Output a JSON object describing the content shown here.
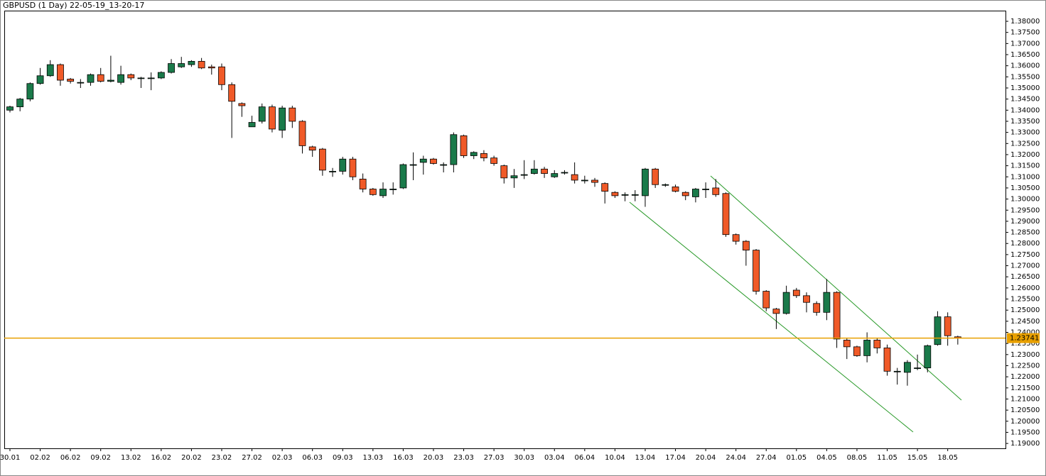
{
  "chart_data": {
    "type": "candlestick",
    "title": "GBPUSD (1 Day) 22-05-19_13-20-17",
    "categories": [
      "30.01",
      null,
      null,
      "02.02",
      null,
      null,
      "06.02",
      null,
      null,
      "09.02",
      null,
      null,
      "13.02",
      null,
      null,
      "16.02",
      null,
      null,
      "20.02",
      null,
      null,
      "23.02",
      null,
      null,
      "27.02",
      null,
      null,
      "02.03",
      null,
      null,
      "06.03",
      null,
      null,
      "09.03",
      null,
      null,
      "13.03",
      null,
      null,
      "16.03",
      null,
      null,
      "20.03",
      null,
      null,
      "23.03",
      null,
      null,
      "27.03",
      null,
      null,
      "30.03",
      null,
      null,
      "03.04",
      null,
      null,
      "06.04",
      null,
      null,
      "10.04",
      null,
      null,
      "13.04",
      null,
      null,
      "17.04",
      null,
      null,
      "20.04",
      null,
      null,
      "24.04",
      null,
      null,
      "27.04",
      null,
      null,
      "01.05",
      null,
      null,
      "04.05",
      null,
      null,
      "08.05",
      null,
      null,
      "11.05",
      null,
      null,
      "15.05",
      null,
      null,
      "18.05",
      null
    ],
    "open": [
      1.34,
      1.3415,
      1.345,
      1.352,
      1.3555,
      1.3605,
      1.354,
      1.3525,
      1.3525,
      1.356,
      1.353,
      1.3525,
      1.356,
      1.3545,
      1.3545,
      1.3545,
      1.357,
      1.3595,
      1.3605,
      1.362,
      1.3595,
      1.3595,
      1.3515,
      1.343,
      1.3325,
      1.335,
      1.3415,
      1.331,
      1.341,
      1.335,
      1.3235,
      1.3225,
      1.3125,
      1.3125,
      1.318,
      1.309,
      1.3045,
      1.3015,
      1.3045,
      1.305,
      1.3155,
      1.3165,
      1.318,
      1.3155,
      1.3155,
      1.3285,
      1.3195,
      1.3205,
      1.3185,
      1.315,
      1.3095,
      1.311,
      1.3115,
      1.3135,
      1.31,
      1.312,
      1.311,
      1.3085,
      1.3085,
      1.307,
      1.303,
      1.302,
      1.302,
      1.3015,
      1.3135,
      1.3065,
      1.3055,
      1.303,
      1.301,
      1.3045,
      1.305,
      1.3025,
      1.284,
      1.281,
      1.277,
      1.2585,
      1.2505,
      1.2485,
      1.259,
      1.2565,
      1.253,
      1.249,
      1.258,
      1.2365,
      1.2335,
      1.2295,
      1.2365,
      1.233,
      1.2225,
      1.222,
      1.224,
      1.224,
      1.2345,
      1.247,
      1.238
    ],
    "high": [
      1.342,
      1.3455,
      1.3525,
      1.359,
      1.3625,
      1.361,
      1.3545,
      1.354,
      1.3565,
      1.359,
      1.3645,
      1.36,
      1.3565,
      1.355,
      1.357,
      1.3575,
      1.363,
      1.364,
      1.3625,
      1.3635,
      1.3605,
      1.361,
      1.3525,
      1.3435,
      1.3375,
      1.343,
      1.3425,
      1.342,
      1.342,
      1.3355,
      1.324,
      1.323,
      1.314,
      1.319,
      1.319,
      1.3115,
      1.305,
      1.3075,
      1.3075,
      1.316,
      1.321,
      1.3195,
      1.3185,
      1.3165,
      1.33,
      1.329,
      1.3215,
      1.322,
      1.3195,
      1.3155,
      1.3135,
      1.3175,
      1.3175,
      1.3145,
      1.313,
      1.313,
      1.3165,
      1.3105,
      1.3095,
      1.3075,
      1.3035,
      1.303,
      1.304,
      1.314,
      1.314,
      1.307,
      1.3065,
      1.3035,
      1.305,
      1.3075,
      1.309,
      1.303,
      1.2845,
      1.2815,
      1.2775,
      1.259,
      1.251,
      1.261,
      1.26,
      1.258,
      1.254,
      1.264,
      1.2585,
      1.2375,
      1.234,
      1.24,
      1.2375,
      1.2345,
      1.224,
      1.2275,
      1.23,
      1.2345,
      1.2495,
      1.249,
      1.2385
    ],
    "low": [
      1.339,
      1.3395,
      1.344,
      1.3515,
      1.355,
      1.351,
      1.352,
      1.35,
      1.351,
      1.3525,
      1.3525,
      1.3515,
      1.3535,
      1.35,
      1.349,
      1.354,
      1.3565,
      1.359,
      1.3595,
      1.3585,
      1.356,
      1.349,
      1.3275,
      1.337,
      1.3325,
      1.334,
      1.33,
      1.3275,
      1.332,
      1.3205,
      1.319,
      1.3105,
      1.31,
      1.311,
      1.3085,
      1.303,
      1.3015,
      1.3005,
      1.302,
      1.3045,
      1.3085,
      1.311,
      1.3155,
      1.312,
      1.312,
      1.3185,
      1.318,
      1.317,
      1.315,
      1.307,
      1.305,
      1.309,
      1.311,
      1.3095,
      1.3095,
      1.311,
      1.307,
      1.307,
      1.3055,
      1.298,
      1.3005,
      1.299,
      1.299,
      1.2965,
      1.305,
      1.3055,
      1.303,
      1.2995,
      1.2985,
      1.3005,
      1.301,
      1.283,
      1.2795,
      1.27,
      1.257,
      1.2495,
      1.2415,
      1.248,
      1.2555,
      1.249,
      1.2475,
      1.2455,
      1.233,
      1.228,
      1.229,
      1.2265,
      1.2305,
      1.2205,
      1.2165,
      1.216,
      1.223,
      1.222,
      1.234,
      1.234,
      1.2345
    ],
    "close": [
      1.3415,
      1.345,
      1.352,
      1.3555,
      1.3605,
      1.3535,
      1.353,
      1.3525,
      1.356,
      1.353,
      1.3535,
      1.356,
      1.3545,
      1.3545,
      1.3545,
      1.357,
      1.361,
      1.361,
      1.362,
      1.359,
      1.359,
      1.3515,
      1.344,
      1.342,
      1.3345,
      1.3415,
      1.3315,
      1.341,
      1.335,
      1.324,
      1.322,
      1.313,
      1.3125,
      1.318,
      1.31,
      1.3045,
      1.302,
      1.3045,
      1.3045,
      1.3155,
      1.3155,
      1.318,
      1.316,
      1.3155,
      1.329,
      1.3195,
      1.321,
      1.3185,
      1.316,
      1.3095,
      1.3105,
      1.311,
      1.3135,
      1.3115,
      1.3115,
      1.312,
      1.3085,
      1.3085,
      1.3075,
      1.3035,
      1.3015,
      1.302,
      1.302,
      1.3135,
      1.3065,
      1.3065,
      1.3035,
      1.3015,
      1.3045,
      1.3045,
      1.302,
      1.284,
      1.281,
      1.277,
      1.2585,
      1.251,
      1.2485,
      1.258,
      1.2565,
      1.2535,
      1.249,
      1.258,
      1.237,
      1.2335,
      1.2295,
      1.2365,
      1.233,
      1.2225,
      1.2225,
      1.2265,
      1.224,
      1.234,
      1.247,
      1.2385,
      1.2375
    ],
    "up_color": "#1a7a4a",
    "down_color": "#f05a28",
    "current_price": 1.23741,
    "current_price_color": "#e8a000",
    "ylim": [
      1.1878,
      1.3848
    ],
    "yticks": [
      {
        "value": 1.19,
        "label": "1.19000"
      },
      {
        "value": 1.195,
        "label": "1.19500"
      },
      {
        "value": 1.2,
        "label": "1.20000"
      },
      {
        "value": 1.205,
        "label": "1.20500"
      },
      {
        "value": 1.21,
        "label": "1.21000"
      },
      {
        "value": 1.215,
        "label": "1.21500"
      },
      {
        "value": 1.22,
        "label": "1.22000"
      },
      {
        "value": 1.225,
        "label": "1.22500"
      },
      {
        "value": 1.23,
        "label": "1.23000"
      },
      {
        "value": 1.235,
        "label": "1.23500"
      },
      {
        "value": 1.24,
        "label": "1.24000"
      },
      {
        "value": 1.245,
        "label": "1.24500"
      },
      {
        "value": 1.25,
        "label": "1.25000"
      },
      {
        "value": 1.255,
        "label": "1.25500"
      },
      {
        "value": 1.26,
        "label": "1.26000"
      },
      {
        "value": 1.265,
        "label": "1.26500"
      },
      {
        "value": 1.27,
        "label": "1.27000"
      },
      {
        "value": 1.275,
        "label": "1.27500"
      },
      {
        "value": 1.28,
        "label": "1.28000"
      },
      {
        "value": 1.285,
        "label": "1.28500"
      },
      {
        "value": 1.29,
        "label": "1.29000"
      },
      {
        "value": 1.295,
        "label": "1.29500"
      },
      {
        "value": 1.3,
        "label": "1.30000"
      },
      {
        "value": 1.305,
        "label": "1.30500"
      },
      {
        "value": 1.31,
        "label": "1.31000"
      },
      {
        "value": 1.315,
        "label": "1.31500"
      },
      {
        "value": 1.32,
        "label": "1.32000"
      },
      {
        "value": 1.325,
        "label": "1.32500"
      },
      {
        "value": 1.33,
        "label": "1.33000"
      },
      {
        "value": 1.335,
        "label": "1.33500"
      },
      {
        "value": 1.34,
        "label": "1.34000"
      },
      {
        "value": 1.345,
        "label": "1.34500"
      },
      {
        "value": 1.35,
        "label": "1.35000"
      },
      {
        "value": 1.355,
        "label": "1.35500"
      },
      {
        "value": 1.36,
        "label": "1.36000"
      },
      {
        "value": 1.365,
        "label": "1.36500"
      },
      {
        "value": 1.37,
        "label": "1.37000"
      },
      {
        "value": 1.375,
        "label": "1.37500"
      },
      {
        "value": 1.38,
        "label": "1.38000"
      }
    ]
  }
}
